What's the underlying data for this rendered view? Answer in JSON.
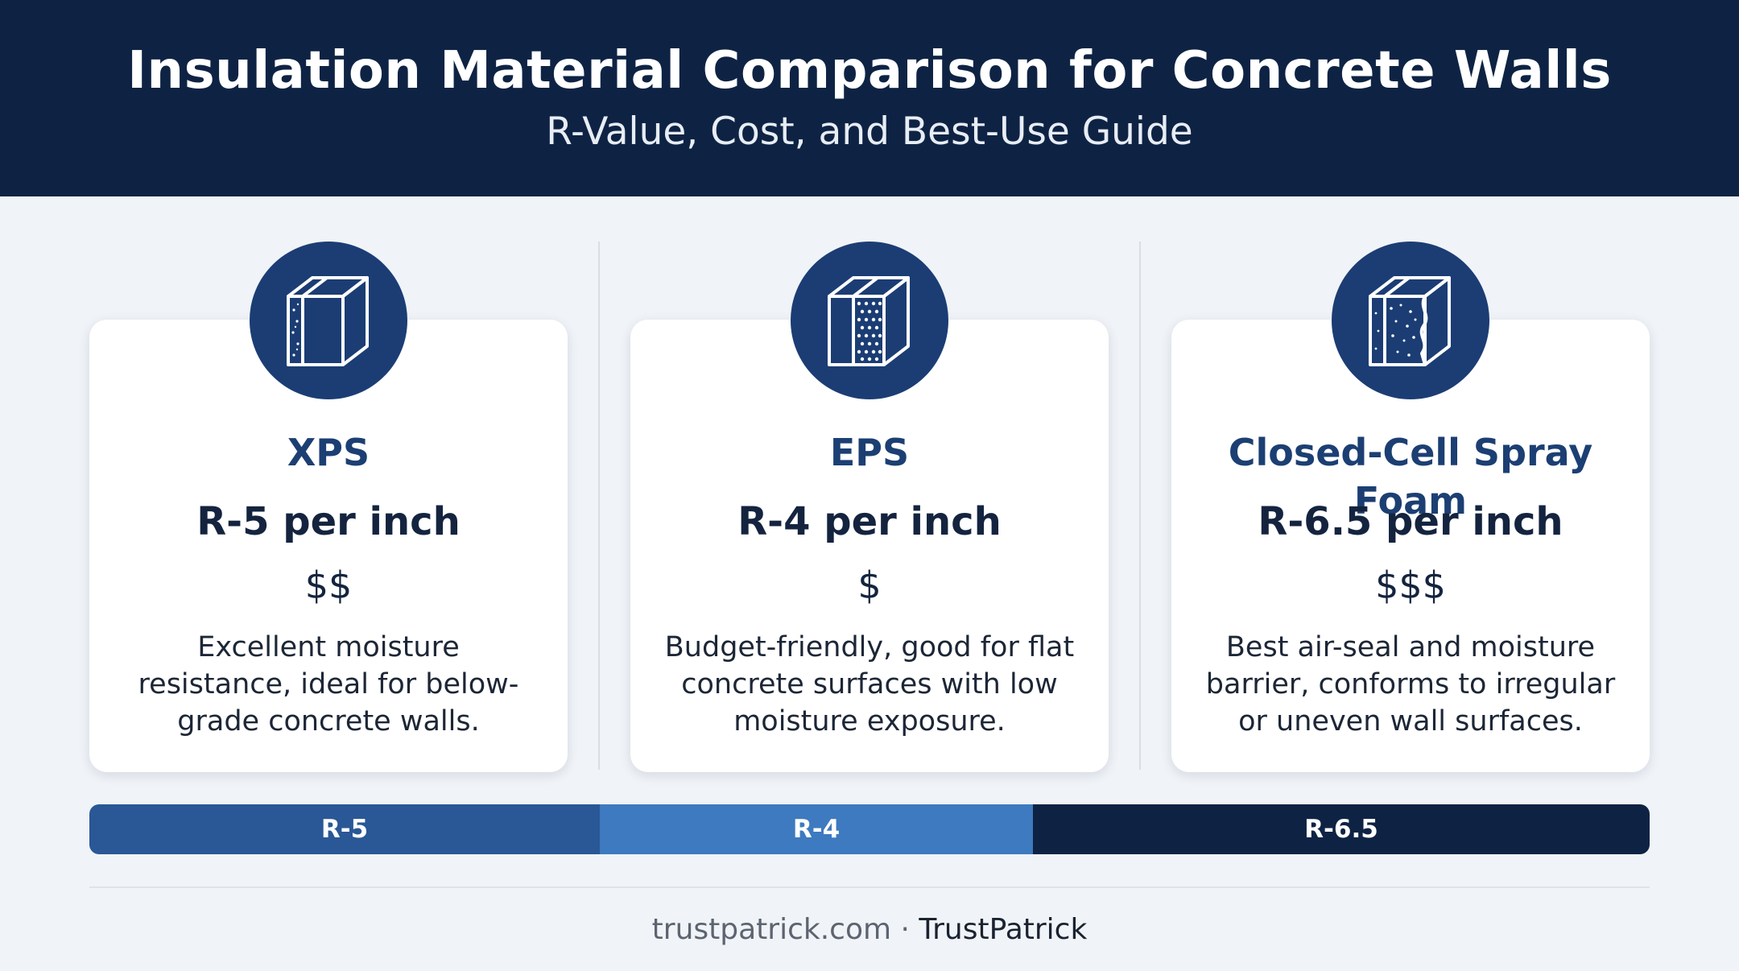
{
  "header": {
    "title": "Insulation Material Comparison for Concrete Walls",
    "subtitle": "R-Value, Cost, and Best-Use Guide"
  },
  "cards": [
    {
      "name": "XPS",
      "rvalue": "R-5 per inch",
      "cost": "$$",
      "description": "Excellent moisture resistance, ideal for below-grade concrete walls.",
      "icon": "insulation-board-speckled-icon"
    },
    {
      "name": "EPS",
      "rvalue": "R-4 per inch",
      "cost": "$",
      "description": "Budget-friendly, good for flat concrete surfaces with low moisture exposure.",
      "icon": "insulation-board-beaded-icon"
    },
    {
      "name": "Closed-Cell Spray Foam",
      "rvalue": "R-6.5 per inch",
      "cost": "$$$",
      "description": "Best air-seal and moisture barrier, conforms to irregular or uneven wall surfaces.",
      "icon": "spray-foam-wall-icon"
    }
  ],
  "rvalue_bar": [
    {
      "label": "R-5",
      "color": "#2a5796"
    },
    {
      "label": "R-4",
      "color": "#3d7abf"
    },
    {
      "label": "R-6.5",
      "color": "#0e2344"
    }
  ],
  "footer": {
    "site": "trustpatrick.com",
    "separator": "·",
    "brand": "TrustPatrick"
  },
  "colors": {
    "header_bg": "#0e2344",
    "badge": "#1b3d74",
    "accent_text": "#1c3f73",
    "page_bg": "#f0f3f7"
  }
}
